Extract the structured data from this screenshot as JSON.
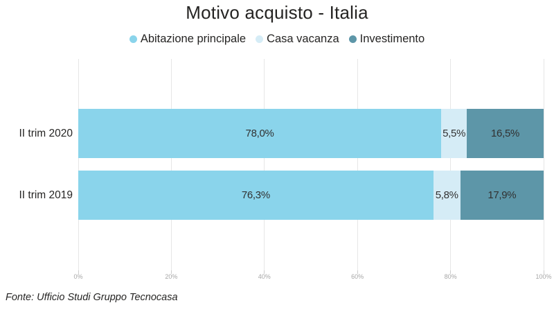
{
  "title": "Motivo acquisto - Italia",
  "footer": "Fonte: Ufficio Studi Gruppo Tecnocasa",
  "legend": [
    {
      "label": "Abitazione principale",
      "color": "#8AD4EB",
      "icon": "legend-dot-abitazione-principale"
    },
    {
      "label": "Casa vacanza",
      "color": "#D5ECF6",
      "icon": "legend-dot-casa-vacanza"
    },
    {
      "label": "Investimento",
      "color": "#5D96A8",
      "icon": "legend-dot-investimento"
    }
  ],
  "chart_data": {
    "type": "bar",
    "orientation": "horizontal",
    "stacked": true,
    "title": "Motivo acquisto - Italia",
    "categories": [
      "II trim 2020",
      "II trim 2019"
    ],
    "series": [
      {
        "name": "Abitazione principale",
        "color": "#8AD4EB",
        "values": [
          78.0,
          76.3
        ]
      },
      {
        "name": "Casa vacanza",
        "color": "#D5ECF6",
        "values": [
          5.5,
          5.8
        ]
      },
      {
        "name": "Investimento",
        "color": "#5D96A8",
        "values": [
          16.5,
          17.9
        ]
      }
    ],
    "data_labels": [
      [
        "78,0%",
        "5,5%",
        "16,5%"
      ],
      [
        "76,3%",
        "5,8%",
        "17,9%"
      ]
    ],
    "x_tick_labels": [
      "0%",
      "20%",
      "40%",
      "60%",
      "80%",
      "100%"
    ],
    "xlim": [
      0,
      100
    ],
    "grid": true,
    "legend_position": "top"
  }
}
